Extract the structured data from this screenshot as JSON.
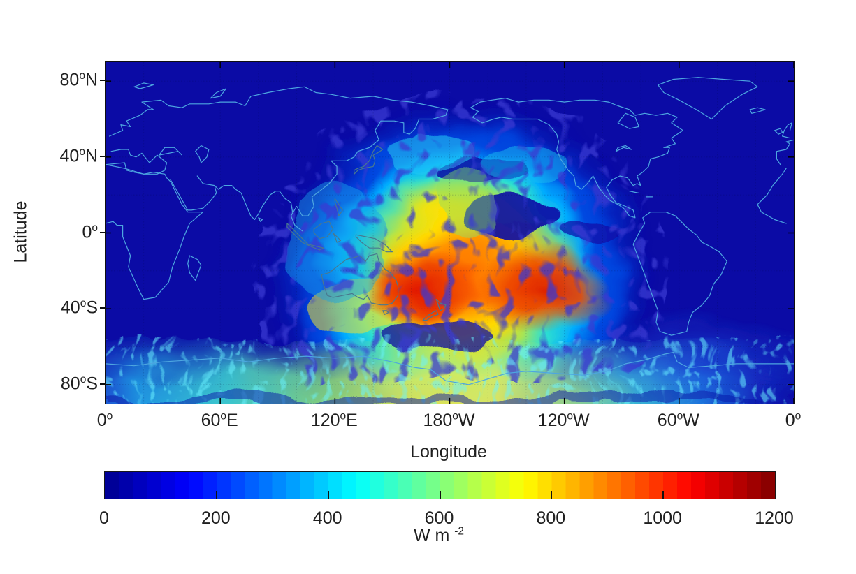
{
  "figure": {
    "title": "",
    "axes": {
      "xlabel": "Longitude",
      "ylabel": "Latitude",
      "degree_symbol": "o",
      "x_ticks": [
        {
          "num": "0",
          "hemi": ""
        },
        {
          "num": "60",
          "hemi": "E"
        },
        {
          "num": "120",
          "hemi": "E"
        },
        {
          "num": "180",
          "hemi": "W"
        },
        {
          "num": "120",
          "hemi": "W"
        },
        {
          "num": "60",
          "hemi": "W"
        },
        {
          "num": "0",
          "hemi": ""
        }
      ],
      "y_ticks": [
        {
          "num": "80",
          "hemi": "N",
          "lat": 80
        },
        {
          "num": "40",
          "hemi": "N",
          "lat": 40
        },
        {
          "num": "0",
          "hemi": "",
          "lat": 0
        },
        {
          "num": "40",
          "hemi": "S",
          "lat": -40
        },
        {
          "num": "80",
          "hemi": "S",
          "lat": -80
        }
      ]
    },
    "colorbar": {
      "min": 0,
      "max": 1200,
      "tick_values": [
        0,
        200,
        400,
        600,
        800,
        1000,
        1200
      ],
      "tick_labels": [
        "0",
        "200",
        "400",
        "600",
        "800",
        "1000",
        "1200"
      ],
      "inner_tick_values": [
        200,
        400,
        600,
        800,
        1000
      ],
      "unit_base": "W m",
      "unit_exponent": "-2",
      "colormap": "jet",
      "segments": 48
    },
    "colors": {
      "night_background": "#0b0ba5",
      "coastline": "#4da6e0",
      "coastline_bright_zone": "#49788f",
      "axis_text": "#1f1f1f",
      "border": "#101010",
      "jet_stops": [
        {
          "t": 0.0,
          "hex": "#00008f"
        },
        {
          "t": 0.125,
          "hex": "#0000ff"
        },
        {
          "t": 0.375,
          "hex": "#00ffff"
        },
        {
          "t": 0.625,
          "hex": "#ffff00"
        },
        {
          "t": 0.875,
          "hex": "#ff0000"
        },
        {
          "t": 1.0,
          "hex": "#800000"
        }
      ]
    }
  },
  "chart_data": {
    "type": "heatmap",
    "title": "",
    "xlabel": "Longitude",
    "ylabel": "Latitude",
    "units": "W m^-2",
    "value_range": [
      0,
      1200
    ],
    "colormap": "jet",
    "x_range_deg": [
      0,
      360
    ],
    "y_range_deg": [
      90,
      -90
    ],
    "grid_lons_degE": [
      0,
      30,
      60,
      90,
      120,
      150,
      180,
      210,
      240,
      270,
      300,
      330,
      360
    ],
    "grid_lats_deg": [
      80,
      60,
      40,
      20,
      0,
      -20,
      -40,
      -60,
      -80
    ],
    "values_W_per_m2": [
      [
        0,
        0,
        0,
        0,
        5,
        10,
        15,
        15,
        10,
        0,
        0,
        0,
        0
      ],
      [
        0,
        0,
        0,
        5,
        20,
        60,
        90,
        70,
        20,
        5,
        0,
        0,
        0
      ],
      [
        0,
        0,
        5,
        10,
        120,
        300,
        380,
        260,
        60,
        5,
        0,
        0,
        0
      ],
      [
        0,
        5,
        10,
        50,
        350,
        650,
        720,
        550,
        160,
        10,
        0,
        0,
        0
      ],
      [
        5,
        10,
        20,
        90,
        520,
        800,
        870,
        760,
        380,
        40,
        5,
        5,
        5
      ],
      [
        5,
        10,
        25,
        120,
        640,
        950,
        1050,
        920,
        520,
        70,
        10,
        5,
        5
      ],
      [
        5,
        15,
        45,
        170,
        720,
        1080,
        1020,
        830,
        420,
        90,
        15,
        5,
        5
      ],
      [
        25,
        70,
        160,
        320,
        620,
        720,
        660,
        520,
        310,
        130,
        45,
        25,
        25
      ],
      [
        120,
        220,
        360,
        520,
        660,
        700,
        610,
        460,
        340,
        240,
        150,
        120,
        120
      ]
    ],
    "description": "Instantaneous shortwave radiation map on an equirectangular world grid centered on 180 deg longitude. The sunlit hemisphere (centered near 170E, 25S over the southwest Pacific / Australia / New Zealand) shows high values up to ~1100 W m-2 (red/orange), ringed by yellow, green, cyan and blue toward the day/night terminator. The night side is uniform dark blue (~0). A bright cyan-to-yellow band covers Antarctica along the bottom. Light-blue coastlines are drawn over the field.",
    "legend_position": "horizontal colorbar below the map",
    "grid_lines": "faint dark graticule every 20 degrees, visible over bright regions"
  }
}
